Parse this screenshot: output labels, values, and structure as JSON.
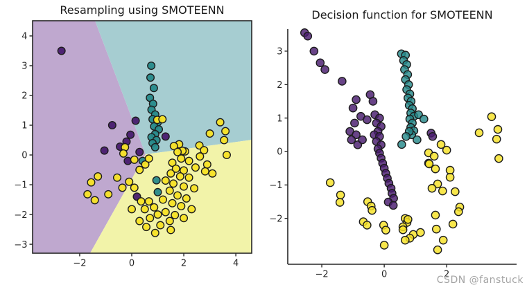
{
  "watermark": {
    "text": "CSDN @fanstuck",
    "color": "#a3a3a3"
  },
  "chart_data": [
    {
      "type": "scatter",
      "title": "Resampling using SMOTEENN",
      "xlabel": "",
      "ylabel": "",
      "xlim": [
        -3.81,
        4.61
      ],
      "ylim": [
        -3.3,
        4.51
      ],
      "xticks": [
        -2,
        0,
        2,
        4
      ],
      "yticks": [
        4,
        3,
        2,
        1,
        0,
        -1,
        -2,
        -3
      ],
      "grid": false,
      "frame": "box",
      "legend": "none",
      "regions": [
        {
          "name": "region-class-0",
          "color": "#bfa8cf",
          "polygon": [
            [
              -3.81,
              4.51
            ],
            [
              -1.41,
              4.51
            ],
            [
              0.53,
              0.02
            ],
            [
              -1.6,
              -3.3
            ],
            [
              -3.81,
              -3.3
            ]
          ]
        },
        {
          "name": "region-class-1",
          "color": "#a6cdd1",
          "polygon": [
            [
              -1.41,
              4.51
            ],
            [
              4.61,
              4.51
            ],
            [
              4.61,
              0.51
            ],
            [
              0.53,
              0.02
            ]
          ]
        },
        {
          "name": "region-class-2",
          "color": "#f2f3a9",
          "polygon": [
            [
              0.53,
              0.02
            ],
            [
              4.61,
              0.51
            ],
            [
              4.61,
              -3.3
            ],
            [
              -1.6,
              -3.3
            ]
          ]
        }
      ],
      "series": [
        {
          "name": "class-0",
          "color": "#481b6e",
          "points": [
            [
              -2.7,
              3.5
            ],
            [
              -0.75,
              1.0
            ],
            [
              0.15,
              1.15
            ],
            [
              1.3,
              0.62
            ],
            [
              -0.2,
              0.45
            ],
            [
              -1.05,
              0.15
            ],
            [
              -0.15,
              -0.2
            ],
            [
              -0.45,
              0.28
            ],
            [
              0.3,
              0.1
            ],
            [
              0.2,
              -1.4
            ],
            [
              -0.05,
              0.68
            ]
          ]
        },
        {
          "name": "class-1",
          "color": "#26898a",
          "points": [
            [
              0.75,
              3.0
            ],
            [
              0.72,
              2.6
            ],
            [
              0.85,
              2.25
            ],
            [
              0.7,
              1.92
            ],
            [
              0.82,
              1.72
            ],
            [
              0.76,
              1.52
            ],
            [
              0.9,
              1.36
            ],
            [
              0.8,
              1.2
            ],
            [
              1.0,
              1.1
            ],
            [
              0.86,
              0.96
            ],
            [
              1.04,
              0.86
            ],
            [
              0.9,
              0.7
            ],
            [
              0.76,
              0.6
            ],
            [
              0.95,
              0.5
            ],
            [
              0.8,
              0.4
            ],
            [
              0.9,
              0.26
            ],
            [
              0.42,
              -0.2
            ],
            [
              0.95,
              -0.85
            ],
            [
              1.0,
              -1.25
            ]
          ]
        },
        {
          "name": "class-2",
          "color": "#f7e225",
          "points": [
            [
              0.98,
              1.18
            ],
            [
              1.18,
              1.2
            ],
            [
              3.4,
              1.1
            ],
            [
              3.0,
              0.72
            ],
            [
              3.6,
              0.8
            ],
            [
              3.55,
              0.5
            ],
            [
              3.65,
              0.0
            ],
            [
              2.6,
              0.32
            ],
            [
              2.78,
              0.16
            ],
            [
              2.62,
              -0.05
            ],
            [
              2.9,
              -0.32
            ],
            [
              2.45,
              -0.42
            ],
            [
              2.82,
              -0.55
            ],
            [
              3.1,
              -0.62
            ],
            [
              2.2,
              -0.2
            ],
            [
              2.05,
              0.12
            ],
            [
              1.95,
              0.14
            ],
            [
              1.82,
              0.36
            ],
            [
              1.62,
              0.3
            ],
            [
              1.76,
              0.1
            ],
            [
              1.9,
              -0.12
            ],
            [
              1.56,
              -0.26
            ],
            [
              1.7,
              -0.46
            ],
            [
              2.0,
              -0.52
            ],
            [
              1.5,
              -0.62
            ],
            [
              1.86,
              -0.72
            ],
            [
              2.2,
              -0.76
            ],
            [
              1.3,
              -0.86
            ],
            [
              1.6,
              -0.96
            ],
            [
              2.0,
              -1.06
            ],
            [
              2.4,
              -1.12
            ],
            [
              1.46,
              -1.2
            ],
            [
              1.76,
              -1.36
            ],
            [
              2.1,
              -1.46
            ],
            [
              1.2,
              -1.5
            ],
            [
              1.56,
              -1.62
            ],
            [
              1.9,
              -1.72
            ],
            [
              2.3,
              -1.82
            ],
            [
              1.3,
              -1.92
            ],
            [
              1.66,
              -2.02
            ],
            [
              2.0,
              -2.12
            ],
            [
              1.46,
              -2.22
            ],
            [
              1.0,
              -2.0
            ],
            [
              0.86,
              -1.76
            ],
            [
              0.66,
              -1.56
            ],
            [
              0.5,
              -1.82
            ],
            [
              0.7,
              -2.12
            ],
            [
              1.1,
              -2.36
            ],
            [
              1.5,
              -2.52
            ],
            [
              0.9,
              -2.62
            ],
            [
              0.56,
              -2.42
            ],
            [
              -0.1,
              -0.9
            ],
            [
              -0.36,
              -1.1
            ],
            [
              -0.56,
              -0.76
            ],
            [
              -1.3,
              -0.72
            ],
            [
              -1.56,
              -0.92
            ],
            [
              -1.7,
              -1.32
            ],
            [
              -1.42,
              -1.52
            ],
            [
              -0.9,
              -1.32
            ],
            [
              -0.26,
              0.26
            ],
            [
              -0.32,
              0.05
            ],
            [
              0.1,
              -0.16
            ],
            [
              0.3,
              -0.5
            ],
            [
              0.52,
              -0.32
            ],
            [
              0.66,
              -0.12
            ],
            [
              0.1,
              -1.1
            ],
            [
              0.36,
              -1.56
            ],
            [
              0.0,
              -1.82
            ],
            [
              0.3,
              -2.22
            ]
          ]
        }
      ]
    },
    {
      "type": "scatter",
      "title": "Decision function for SMOTEENN",
      "xlabel": "",
      "ylabel": "",
      "xlim": [
        -3.09,
        4.24
      ],
      "ylim": [
        -3.37,
        3.66
      ],
      "xticks": [
        -2,
        0,
        2
      ],
      "yticks": [
        3,
        2,
        1,
        0,
        -1,
        -2
      ],
      "grid": false,
      "frame": "spines-lb",
      "legend": "none",
      "regions": [],
      "series": [
        {
          "name": "class-0",
          "color": "#481b6e",
          "points": [
            [
              -2.55,
              3.55
            ],
            [
              -2.45,
              3.45
            ],
            [
              -2.25,
              3.0
            ],
            [
              -2.05,
              2.65
            ],
            [
              -1.9,
              2.45
            ],
            [
              -1.35,
              2.1
            ],
            [
              -0.45,
              1.7
            ],
            [
              -0.9,
              1.55
            ],
            [
              -1.0,
              1.3
            ],
            [
              -0.36,
              1.5
            ],
            [
              -0.75,
              1.05
            ],
            [
              -0.55,
              0.95
            ],
            [
              -0.95,
              0.85
            ],
            [
              -1.1,
              0.6
            ],
            [
              -0.9,
              0.5
            ],
            [
              -1.05,
              0.35
            ],
            [
              -0.85,
              0.2
            ],
            [
              -0.7,
              0.35
            ],
            [
              -0.3,
              1.1
            ],
            [
              -0.15,
              1.0
            ],
            [
              -0.25,
              0.85
            ],
            [
              -0.1,
              0.75
            ],
            [
              -0.2,
              0.6
            ],
            [
              -0.32,
              0.5
            ],
            [
              -0.15,
              0.45
            ],
            [
              -0.25,
              0.3
            ],
            [
              -0.1,
              0.2
            ],
            [
              -0.2,
              0.08
            ],
            [
              -0.15,
              -0.05
            ],
            [
              -0.1,
              -0.2
            ],
            [
              -0.05,
              -0.35
            ],
            [
              0.0,
              -0.5
            ],
            [
              0.05,
              -0.65
            ],
            [
              0.1,
              -0.8
            ],
            [
              0.15,
              -0.95
            ],
            [
              0.22,
              -1.1
            ],
            [
              0.25,
              -1.25
            ],
            [
              0.3,
              -1.4
            ],
            [
              0.13,
              -1.51
            ],
            [
              0.29,
              -1.61
            ],
            [
              1.5,
              0.55
            ],
            [
              1.55,
              0.45
            ]
          ]
        },
        {
          "name": "class-1",
          "color": "#26898a",
          "points": [
            [
              0.55,
              2.92
            ],
            [
              0.68,
              2.88
            ],
            [
              0.62,
              2.72
            ],
            [
              0.72,
              2.6
            ],
            [
              0.65,
              2.45
            ],
            [
              0.75,
              2.3
            ],
            [
              0.68,
              2.15
            ],
            [
              0.78,
              2.0
            ],
            [
              0.72,
              1.85
            ],
            [
              0.82,
              1.72
            ],
            [
              0.76,
              1.6
            ],
            [
              0.86,
              1.5
            ],
            [
              0.8,
              1.38
            ],
            [
              0.9,
              1.28
            ],
            [
              0.85,
              1.15
            ],
            [
              0.95,
              1.05
            ],
            [
              1.1,
              1.1
            ],
            [
              1.27,
              0.97
            ],
            [
              0.82,
              0.97
            ],
            [
              0.9,
              0.85
            ],
            [
              0.85,
              0.72
            ],
            [
              0.95,
              0.62
            ],
            [
              0.88,
              0.5
            ],
            [
              0.8,
              0.6
            ],
            [
              0.56,
              0.21
            ],
            [
              1.05,
              0.35
            ],
            [
              0.7,
              0.45
            ]
          ]
        },
        {
          "name": "class-2",
          "color": "#f7e225",
          "points": [
            [
              -1.73,
              -0.93
            ],
            [
              -1.4,
              -1.3
            ],
            [
              -1.42,
              -1.52
            ],
            [
              -0.53,
              -1.5
            ],
            [
              -0.42,
              -1.63
            ],
            [
              -0.39,
              -1.76
            ],
            [
              -0.67,
              -2.1
            ],
            [
              -0.55,
              -2.2
            ],
            [
              -0.02,
              -2.2
            ],
            [
              0.05,
              -2.35
            ],
            [
              0.0,
              -2.8
            ],
            [
              0.67,
              -2.0
            ],
            [
              0.73,
              -2.12
            ],
            [
              0.6,
              -2.25
            ],
            [
              1.42,
              -0.35
            ],
            [
              1.64,
              -0.52
            ],
            [
              2.11,
              -0.56
            ],
            [
              2.11,
              -0.77
            ],
            [
              1.71,
              -0.97
            ],
            [
              1.53,
              -1.1
            ],
            [
              1.87,
              -1.18
            ],
            [
              2.27,
              -1.2
            ],
            [
              2.42,
              -1.66
            ],
            [
              2.38,
              -1.8
            ],
            [
              1.64,
              -1.9
            ],
            [
              0.76,
              -2.03
            ],
            [
              0.6,
              -2.34
            ],
            [
              0.93,
              -2.48
            ],
            [
              1.16,
              -2.42
            ],
            [
              0.82,
              -2.59
            ],
            [
              0.67,
              -2.65
            ],
            [
              1.67,
              -2.32
            ],
            [
              2.2,
              -2.17
            ],
            [
              1.89,
              -2.65
            ],
            [
              1.71,
              -2.94
            ],
            [
              3.44,
              1.04
            ],
            [
              3.04,
              0.56
            ],
            [
              3.64,
              0.66
            ],
            [
              3.6,
              0.37
            ],
            [
              2.0,
              0.04
            ],
            [
              3.67,
              -0.21
            ],
            [
              1.42,
              -0.04
            ],
            [
              1.6,
              -0.14
            ],
            [
              1.44,
              -0.37
            ],
            [
              1.82,
              0.21
            ]
          ]
        }
      ]
    }
  ],
  "style": {
    "marker_edge_color": "#1c1c1c",
    "axis_color": "#262626",
    "tick_label_color": "#262626"
  }
}
